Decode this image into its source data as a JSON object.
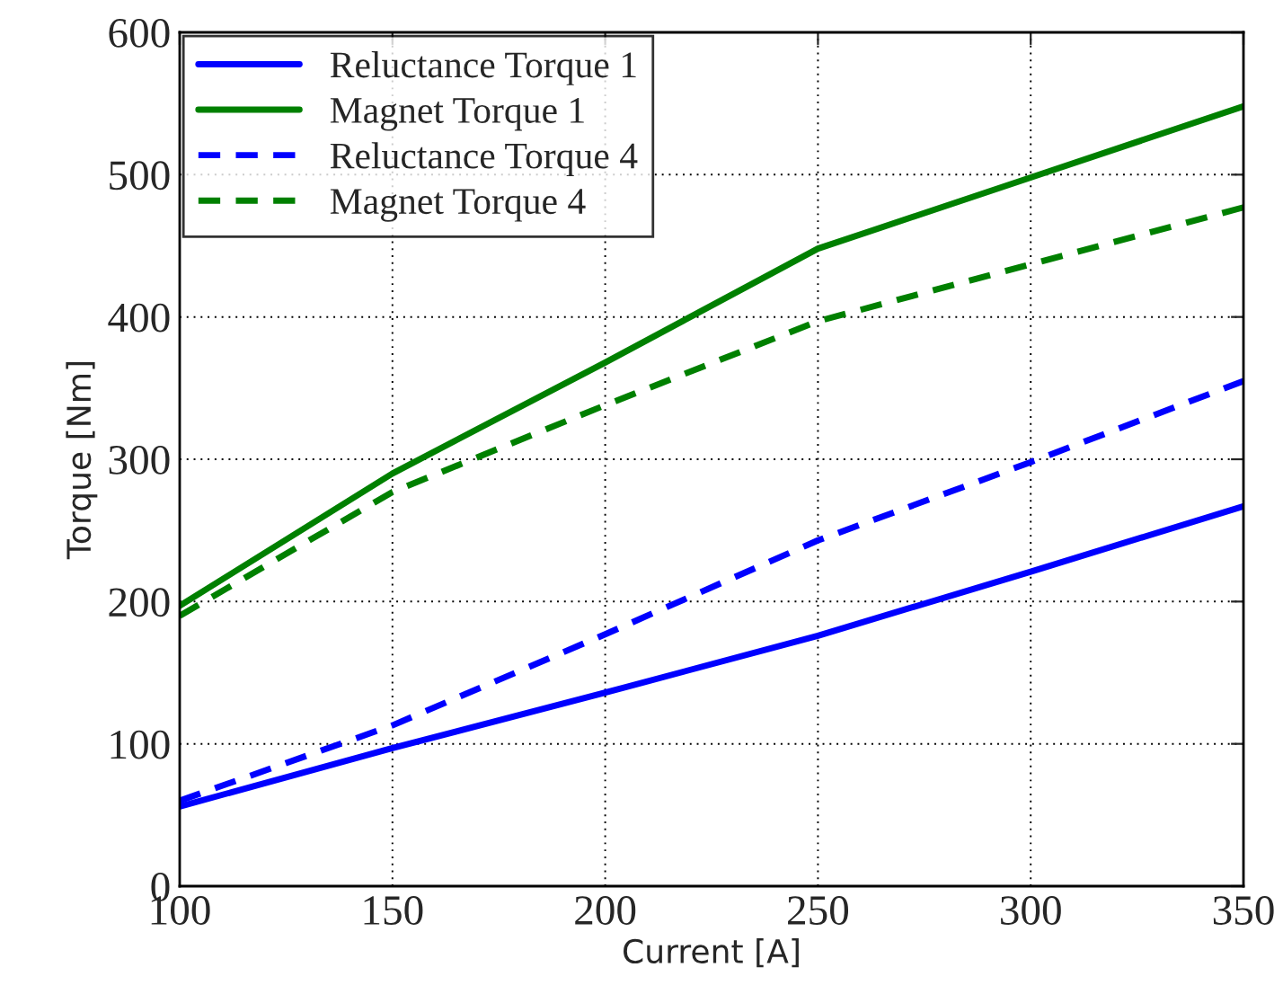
{
  "chart_data": {
    "type": "line",
    "xlabel": "Current [A]",
    "ylabel": "Torque [Nm]",
    "x": [
      100,
      150,
      200,
      250,
      300,
      350
    ],
    "series": [
      {
        "name": "Reluctance Torque 1",
        "color": "#0000ff",
        "line_style": "solid",
        "values": [
          56,
          97,
          136,
          176,
          221,
          267
        ]
      },
      {
        "name": "Magnet Torque 1",
        "color": "#008000",
        "line_style": "solid",
        "values": [
          197,
          290,
          368,
          448,
          498,
          548
        ]
      },
      {
        "name": "Reluctance Torque 4",
        "color": "#0000ff",
        "line_style": "dashed",
        "values": [
          60,
          113,
          177,
          243,
          298,
          355
        ]
      },
      {
        "name": "Magnet Torque 4",
        "color": "#008000",
        "line_style": "dashed",
        "values": [
          190,
          277,
          338,
          397,
          437,
          477
        ]
      }
    ],
    "xlim": [
      100,
      350
    ],
    "xticks": [
      100,
      150,
      200,
      250,
      300,
      350
    ],
    "ylim": [
      0,
      600
    ],
    "yticks": [
      0,
      100,
      200,
      300,
      400,
      500,
      600
    ],
    "grid": true,
    "legend": "top left",
    "marker": "none"
  }
}
